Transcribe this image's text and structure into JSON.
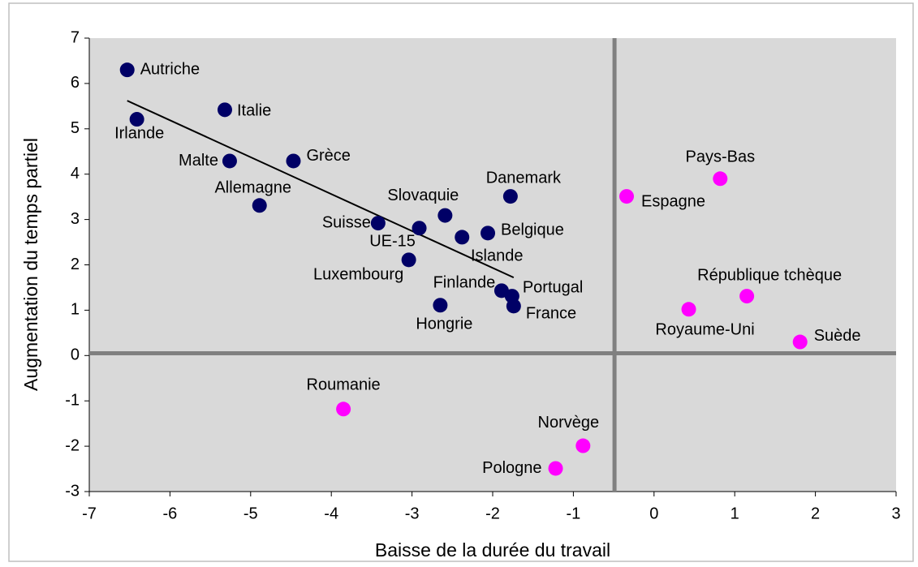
{
  "chart_data": {
    "type": "scatter",
    "x_label": "Baisse de la durée du travail",
    "y_label": "Augmentation du temps partiel",
    "xlim": [
      -7,
      3
    ],
    "ylim": [
      -3,
      7
    ],
    "xticks": [
      -7,
      -6,
      -5,
      -4,
      -3,
      -2,
      -1,
      0,
      1,
      2,
      3
    ],
    "yticks": [
      -3,
      -2,
      -1,
      0,
      1,
      2,
      3,
      4,
      5,
      6,
      7
    ],
    "plot_background": "#d9d9d9",
    "series": [
      {
        "color": "#000066",
        "labels": [
          "Autriche",
          "Irlande",
          "Italie",
          "Malte",
          "Grèce",
          "Allemagne",
          "Suisse",
          "UE-15",
          "Slovaquie",
          "Luxembourg",
          "Islande",
          "Belgique",
          "Danemark",
          "Finlande",
          "Portugal",
          "France",
          "Hongrie"
        ],
        "x": [
          -6.53,
          -6.41,
          -5.32,
          -5.26,
          -4.47,
          -4.89,
          -3.42,
          -2.91,
          -2.59,
          -3.04,
          -2.38,
          -2.06,
          -1.78,
          -1.89,
          -1.76,
          -1.74,
          -2.65
        ],
        "y": [
          6.3,
          5.21,
          5.42,
          4.29,
          4.29,
          3.31,
          2.92,
          2.81,
          3.09,
          2.11,
          2.61,
          2.7,
          3.51,
          1.43,
          1.31,
          1.09,
          1.11
        ]
      },
      {
        "color": "#ff00ff",
        "labels": [
          "Espagne",
          "Pays-Bas",
          "République tchèque",
          "Royaume-Uni",
          "Suède",
          "Roumanie",
          "Norvège",
          "Pologne"
        ],
        "x": [
          -0.34,
          0.82,
          1.15,
          0.43,
          1.81,
          -3.85,
          -0.88,
          -1.22
        ],
        "y": [
          3.51,
          3.9,
          1.31,
          1.02,
          0.3,
          -1.18,
          -1.99,
          -2.49
        ]
      }
    ],
    "trendline": {
      "color": "#000000",
      "x": [
        -6.53,
        -1.74
      ],
      "y": [
        5.62,
        1.72
      ]
    },
    "reference_lines": {
      "color": "#808080",
      "x": -0.49,
      "y": 0.05
    }
  }
}
